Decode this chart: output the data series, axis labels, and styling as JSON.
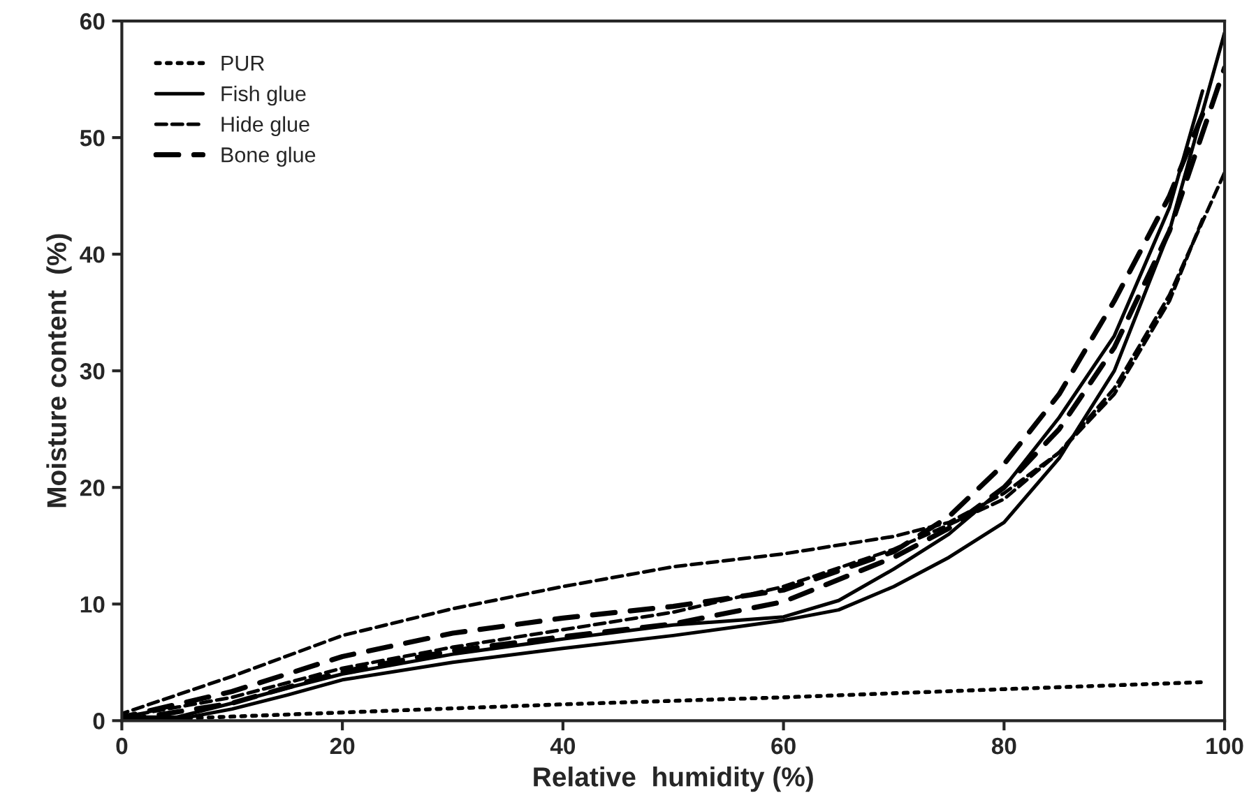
{
  "chart_data": {
    "type": "line",
    "xlabel": "Relative  humidity (%)",
    "ylabel": "Moisture content  (%)",
    "xlim": [
      0,
      100
    ],
    "ylim": [
      0,
      60
    ],
    "xticks": [
      0,
      20,
      40,
      60,
      80,
      100
    ],
    "yticks": [
      0,
      10,
      20,
      30,
      40,
      50,
      60
    ],
    "grid": false,
    "legend": "top left",
    "marker": "none",
    "series": [
      {
        "name": "PUR",
        "color": "#000000",
        "line_style": "dotted",
        "x": [
          0,
          20,
          40,
          60,
          80,
          98
        ],
        "values": [
          0,
          0.7,
          1.4,
          2.0,
          2.7,
          3.3
        ]
      },
      {
        "name": "Fish glue",
        "color": "#000000",
        "line_style": "solid",
        "x": [
          0,
          5,
          10,
          15,
          20,
          30,
          40,
          50,
          60,
          65,
          70,
          75,
          80,
          85,
          90,
          95,
          100
        ],
        "values": [
          0,
          0.1,
          1.0,
          2.2,
          3.5,
          5.0,
          6.2,
          7.3,
          8.6,
          9.5,
          11.5,
          14,
          17,
          22.5,
          30,
          42,
          59
        ]
      },
      {
        "color": "#000000",
        "line_style": "solid",
        "x": [
          98,
          95,
          90,
          85,
          80,
          75,
          70,
          65,
          60,
          50,
          40,
          30,
          20,
          15,
          10,
          5,
          0
        ],
        "values": [
          54,
          44,
          33,
          26,
          20,
          16,
          13,
          10.3,
          8.9,
          8.2,
          7,
          5.7,
          4,
          2.8,
          1.5,
          0.3,
          0.3
        ]
      },
      {
        "name": "Hide glue",
        "color": "#000000",
        "line_style": "dashed",
        "x": [
          0,
          10,
          20,
          30,
          40,
          50,
          60,
          70,
          75,
          80,
          85,
          90,
          95,
          100
        ],
        "values": [
          0.3,
          2,
          4.5,
          6.3,
          7.8,
          9.3,
          11.5,
          14.7,
          16.8,
          19,
          23,
          28.5,
          36.5,
          47
        ]
      },
      {
        "color": "#000000",
        "line_style": "dashed",
        "x": [
          98,
          95,
          90,
          85,
          80,
          75,
          70,
          60,
          50,
          40,
          30,
          20,
          10,
          0
        ],
        "values": [
          43,
          36,
          28,
          23,
          19.5,
          17,
          15.8,
          14.3,
          13.2,
          11.5,
          9.6,
          7.3,
          3.8,
          0.6
        ]
      },
      {
        "name": "Bone glue",
        "color": "#000000",
        "line_style": "dashed",
        "x": [
          0,
          10,
          20,
          30,
          40,
          50,
          60,
          70,
          75,
          80,
          85,
          90,
          95,
          100
        ],
        "values": [
          0,
          1.5,
          4.2,
          6,
          7.2,
          8.3,
          10.2,
          14,
          16.5,
          20,
          25,
          32,
          42,
          56
        ]
      },
      {
        "color": "#000000",
        "line_style": "dashed",
        "x": [
          98,
          95,
          90,
          85,
          80,
          75,
          70,
          60,
          50,
          40,
          30,
          20,
          10,
          0
        ],
        "values": [
          52,
          45,
          36,
          28,
          22,
          17.5,
          14.5,
          11.2,
          9.8,
          8.8,
          7.5,
          5.5,
          2.5,
          0.3
        ]
      }
    ]
  }
}
